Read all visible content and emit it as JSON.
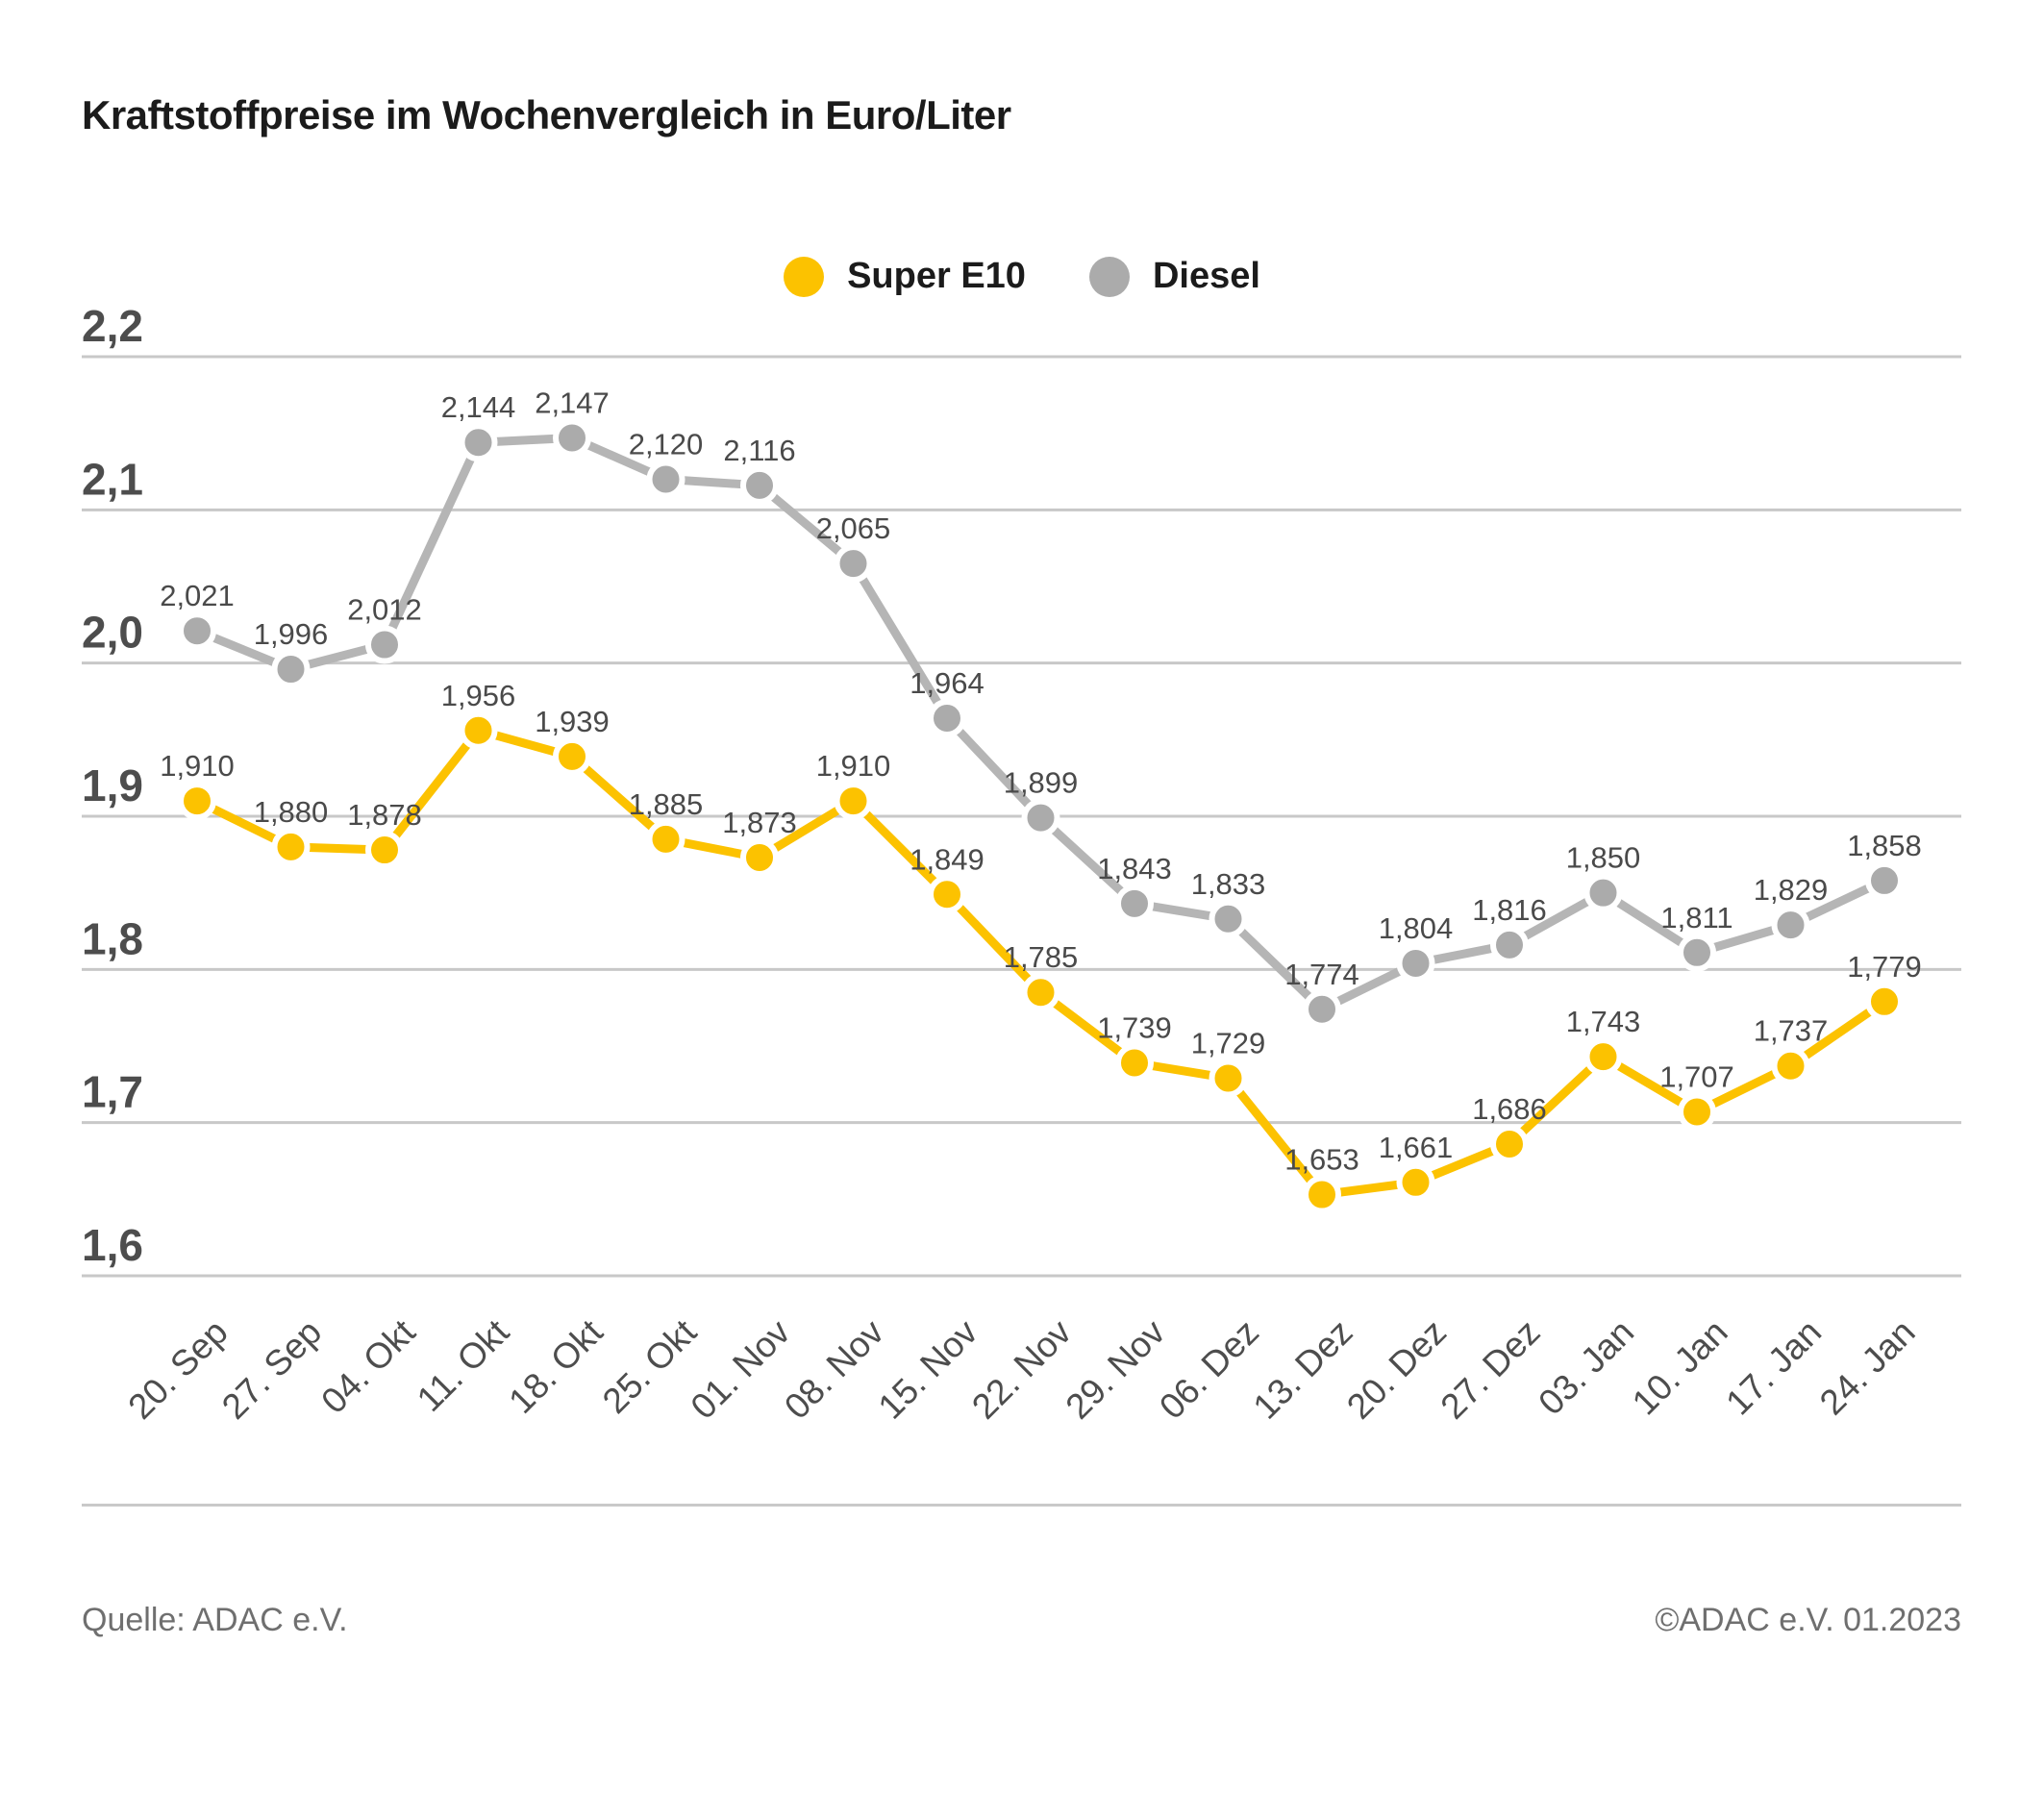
{
  "title": "Kraftstoffpreise im Wochenvergleich in Euro/Liter",
  "chart_data": {
    "type": "line",
    "title": "Kraftstoffpreise im Wochenvergleich in Euro/Liter",
    "categories": [
      "20. Sep",
      "27. Sep",
      "04. Okt",
      "11. Okt",
      "18. Okt",
      "25. Okt",
      "01. Nov",
      "08. Nov",
      "15. Nov",
      "22. Nov",
      "29. Nov",
      "06. Dez",
      "13. Dez",
      "20. Dez",
      "27. Dez",
      "03. Jan",
      "10. Jan",
      "17. Jan",
      "24. Jan"
    ],
    "series": [
      {
        "name": "Super E10",
        "color": "#FCC200",
        "marker_color": "#FCC200",
        "values": [
          1.91,
          1.88,
          1.878,
          1.956,
          1.939,
          1.885,
          1.873,
          1.91,
          1.849,
          1.785,
          1.739,
          1.729,
          1.653,
          1.661,
          1.686,
          1.743,
          1.707,
          1.737,
          1.779
        ]
      },
      {
        "name": "Diesel",
        "color": "#B5B5B5",
        "marker_color": "#ABABAB",
        "values": [
          2.021,
          1.996,
          2.012,
          2.144,
          2.147,
          2.12,
          2.116,
          2.065,
          1.964,
          1.899,
          1.843,
          1.833,
          1.774,
          1.804,
          1.816,
          1.85,
          1.811,
          1.829,
          1.858
        ]
      }
    ],
    "ylim": [
      1.6,
      2.2
    ],
    "yticks": [
      2.2,
      2.1,
      2.0,
      1.9,
      1.8,
      1.7,
      1.6
    ],
    "decimal_separator": ",",
    "value_label_decimals": 3,
    "grid": true,
    "legend_position": "top-center",
    "colors": {
      "grid": "#C8C8C8",
      "y_tick_label": "#4D4D4D",
      "value_label": "#4A4A4A",
      "x_tick_label": "#4D4D4D"
    }
  },
  "footer": {
    "source": "Quelle: ADAC e.V.",
    "copyright": "©ADAC e.V. 01.2023"
  }
}
